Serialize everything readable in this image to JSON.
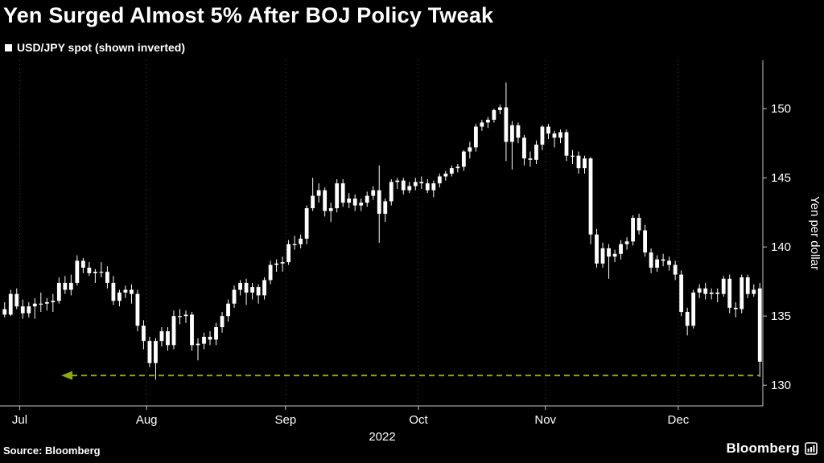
{
  "title": "Yen Surged Almost 5% After BOJ Policy Tweak",
  "legend": {
    "label": "USD/JPY spot (shown inverted)",
    "marker_color": "#ffffff"
  },
  "source": "Source: Bloomberg",
  "brand": {
    "name": "Bloomberg"
  },
  "chart_data": {
    "type": "candlestick",
    "title": "Yen Surged Almost 5% After BOJ Policy Tweak",
    "series_label": "USD/JPY spot (shown inverted)",
    "xlabel": "2022",
    "ylabel": "Yen per dollar",
    "y_ticks": [
      130,
      135,
      140,
      145,
      150
    ],
    "ylim": [
      128.5,
      153.5
    ],
    "grid": "vertical-dotted",
    "legend_position": "top-left",
    "colors": {
      "background": "#000000",
      "text": "#ffffff",
      "axis": "#c8c8c8",
      "grid": "#474747",
      "candle": "#ffffff",
      "reference": "#8fa80e"
    },
    "x_months": [
      {
        "label": "Jul",
        "index": 3
      },
      {
        "label": "Aug",
        "index": 24
      },
      {
        "label": "Sep",
        "index": 47
      },
      {
        "label": "Oct",
        "index": 69
      },
      {
        "label": "Nov",
        "index": 90
      },
      {
        "label": "Dec",
        "index": 112
      }
    ],
    "reference_line": {
      "value": 130.7,
      "style": "dashed",
      "arrow": "left",
      "color": "#8fa80e"
    },
    "candles_ohlc": [
      [
        135.5,
        136.0,
        134.9,
        135.1
      ],
      [
        135.1,
        136.9,
        135.0,
        136.6
      ],
      [
        136.6,
        137.0,
        135.5,
        135.7
      ],
      [
        135.7,
        136.2,
        134.8,
        135.2
      ],
      [
        135.2,
        136.0,
        134.9,
        135.7
      ],
      [
        135.7,
        136.3,
        134.8,
        135.9
      ],
      [
        135.9,
        136.7,
        135.3,
        135.9
      ],
      [
        135.9,
        136.3,
        135.4,
        136.0
      ],
      [
        136.0,
        136.6,
        135.3,
        136.1
      ],
      [
        136.1,
        137.8,
        135.9,
        137.4
      ],
      [
        137.4,
        137.9,
        136.6,
        136.9
      ],
      [
        136.9,
        138.0,
        136.5,
        137.4
      ],
      [
        137.4,
        139.4,
        137.2,
        139.0
      ],
      [
        139.0,
        139.2,
        138.1,
        138.5
      ],
      [
        138.5,
        138.9,
        137.9,
        138.1
      ],
      [
        138.1,
        138.4,
        137.4,
        138.2
      ],
      [
        138.2,
        138.9,
        137.8,
        138.2
      ],
      [
        138.2,
        138.6,
        137.0,
        137.4
      ],
      [
        137.4,
        137.9,
        135.8,
        136.1
      ],
      [
        136.1,
        136.9,
        135.7,
        136.7
      ],
      [
        136.7,
        137.2,
        136.3,
        136.9
      ],
      [
        136.9,
        137.3,
        135.9,
        136.6
      ],
      [
        136.6,
        136.9,
        133.9,
        134.3
      ],
      [
        134.3,
        134.7,
        132.6,
        133.2
      ],
      [
        133.2,
        133.5,
        131.3,
        131.6
      ],
      [
        131.6,
        133.4,
        130.4,
        133.2
      ],
      [
        133.2,
        134.2,
        132.8,
        133.9
      ],
      [
        133.9,
        134.2,
        132.5,
        132.9
      ],
      [
        132.9,
        135.4,
        132.6,
        135.0
      ],
      [
        135.0,
        135.5,
        134.4,
        135.0
      ],
      [
        135.0,
        135.4,
        134.5,
        135.1
      ],
      [
        135.1,
        135.3,
        132.5,
        132.9
      ],
      [
        132.9,
        133.4,
        131.8,
        133.0
      ],
      [
        133.0,
        133.8,
        132.6,
        133.5
      ],
      [
        133.5,
        133.9,
        132.9,
        133.3
      ],
      [
        133.3,
        134.5,
        132.9,
        134.2
      ],
      [
        134.2,
        135.3,
        133.8,
        135.0
      ],
      [
        135.0,
        136.2,
        134.6,
        135.9
      ],
      [
        135.9,
        137.2,
        135.6,
        136.9
      ],
      [
        136.9,
        137.6,
        136.5,
        137.4
      ],
      [
        137.4,
        137.7,
        135.8,
        136.7
      ],
      [
        136.7,
        137.4,
        136.2,
        137.1
      ],
      [
        137.1,
        137.3,
        135.9,
        136.5
      ],
      [
        136.5,
        137.8,
        136.2,
        137.6
      ],
      [
        137.6,
        139.0,
        137.3,
        138.7
      ],
      [
        138.7,
        139.1,
        138.2,
        138.8
      ],
      [
        138.8,
        139.3,
        138.2,
        138.9
      ],
      [
        138.9,
        140.5,
        138.7,
        140.2
      ],
      [
        140.2,
        140.8,
        139.8,
        140.2
      ],
      [
        140.2,
        140.9,
        139.9,
        140.6
      ],
      [
        140.6,
        143.0,
        140.2,
        142.8
      ],
      [
        142.8,
        145.0,
        142.6,
        143.7
      ],
      [
        143.7,
        144.6,
        143.2,
        144.1
      ],
      [
        144.1,
        144.3,
        142.2,
        142.6
      ],
      [
        142.6,
        143.2,
        141.8,
        142.8
      ],
      [
        142.8,
        144.9,
        142.5,
        144.6
      ],
      [
        144.6,
        144.9,
        142.9,
        143.2
      ],
      [
        143.2,
        143.9,
        142.8,
        143.5
      ],
      [
        143.5,
        143.8,
        142.6,
        143.0
      ],
      [
        143.0,
        143.5,
        142.6,
        143.2
      ],
      [
        143.2,
        144.0,
        142.9,
        143.7
      ],
      [
        143.7,
        144.4,
        143.4,
        144.1
      ],
      [
        144.1,
        145.9,
        140.3,
        142.4
      ],
      [
        142.4,
        143.5,
        141.8,
        143.3
      ],
      [
        143.3,
        144.9,
        143.0,
        144.7
      ],
      [
        144.7,
        145.0,
        144.2,
        144.8
      ],
      [
        144.8,
        145.0,
        143.8,
        144.1
      ],
      [
        144.1,
        144.7,
        143.9,
        144.4
      ],
      [
        144.4,
        145.0,
        144.1,
        144.7
      ],
      [
        144.7,
        145.1,
        144.2,
        144.6
      ],
      [
        144.6,
        144.9,
        143.9,
        144.1
      ],
      [
        144.1,
        144.8,
        143.6,
        144.6
      ],
      [
        144.6,
        145.3,
        144.3,
        145.1
      ],
      [
        145.1,
        145.5,
        144.8,
        145.3
      ],
      [
        145.3,
        145.9,
        145.1,
        145.7
      ],
      [
        145.7,
        146.0,
        145.4,
        145.8
      ],
      [
        145.8,
        147.0,
        145.5,
        146.9
      ],
      [
        146.9,
        147.6,
        146.4,
        147.2
      ],
      [
        147.2,
        148.9,
        146.9,
        148.7
      ],
      [
        148.7,
        149.2,
        148.4,
        149.0
      ],
      [
        149.0,
        149.4,
        148.6,
        149.2
      ],
      [
        149.2,
        150.0,
        149.0,
        149.9
      ],
      [
        149.9,
        150.3,
        149.6,
        150.1
      ],
      [
        150.1,
        151.9,
        146.2,
        147.6
      ],
      [
        147.6,
        149.1,
        145.6,
        148.8
      ],
      [
        148.8,
        149.0,
        147.5,
        147.9
      ],
      [
        147.9,
        148.1,
        145.9,
        146.4
      ],
      [
        146.4,
        146.9,
        145.8,
        146.3
      ],
      [
        146.3,
        147.7,
        146.0,
        147.4
      ],
      [
        147.4,
        148.8,
        147.0,
        148.7
      ],
      [
        148.7,
        148.9,
        147.8,
        148.2
      ],
      [
        148.2,
        148.4,
        147.2,
        147.9
      ],
      [
        147.9,
        148.5,
        147.5,
        148.3
      ],
      [
        148.3,
        148.5,
        146.2,
        146.6
      ],
      [
        146.6,
        147.0,
        146.0,
        146.6
      ],
      [
        146.6,
        146.9,
        145.3,
        145.7
      ],
      [
        145.7,
        146.6,
        145.3,
        146.4
      ],
      [
        146.4,
        146.5,
        140.2,
        140.9
      ],
      [
        140.9,
        141.3,
        138.5,
        138.8
      ],
      [
        138.8,
        140.3,
        138.5,
        139.9
      ],
      [
        139.9,
        140.2,
        137.7,
        139.3
      ],
      [
        139.3,
        139.8,
        138.9,
        139.5
      ],
      [
        139.5,
        140.5,
        139.1,
        140.2
      ],
      [
        140.2,
        140.7,
        139.8,
        140.4
      ],
      [
        140.4,
        142.3,
        140.1,
        142.1
      ],
      [
        142.1,
        142.4,
        140.9,
        141.2
      ],
      [
        141.2,
        141.6,
        139.3,
        139.6
      ],
      [
        139.6,
        139.9,
        138.1,
        138.5
      ],
      [
        138.5,
        139.4,
        138.2,
        139.1
      ],
      [
        139.1,
        139.5,
        138.6,
        139.0
      ],
      [
        139.0,
        139.3,
        138.3,
        138.7
      ],
      [
        138.7,
        139.0,
        137.6,
        138.0
      ],
      [
        138.0,
        138.3,
        135.0,
        135.3
      ],
      [
        135.3,
        135.6,
        133.6,
        134.3
      ],
      [
        134.3,
        136.9,
        134.1,
        136.7
      ],
      [
        136.7,
        137.3,
        136.3,
        137.0
      ],
      [
        137.0,
        137.4,
        136.2,
        136.6
      ],
      [
        136.6,
        137.0,
        136.2,
        136.7
      ],
      [
        136.7,
        137.0,
        136.0,
        136.6
      ],
      [
        136.6,
        137.9,
        136.4,
        137.7
      ],
      [
        137.7,
        138.0,
        135.2,
        135.6
      ],
      [
        135.6,
        136.0,
        134.9,
        135.5
      ],
      [
        135.5,
        138.0,
        135.2,
        137.8
      ],
      [
        137.8,
        138.0,
        136.3,
        136.6
      ],
      [
        136.6,
        137.3,
        136.4,
        136.9
      ],
      [
        137.0,
        137.4,
        130.6,
        131.7
      ]
    ]
  }
}
